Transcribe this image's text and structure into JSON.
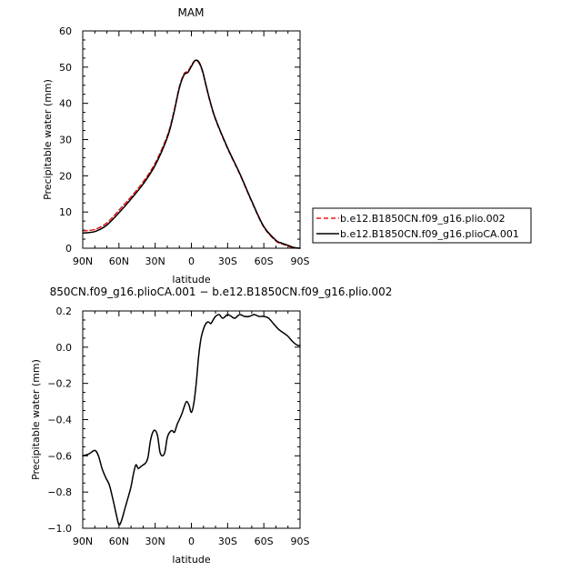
{
  "figure": {
    "top_title": "MAM",
    "bottom_title": "850CN.f09_g16.plioCA.001 − b.e12.B1850CN.f09_g16.plio.002"
  },
  "chart_data": [
    {
      "type": "line",
      "title": "MAM",
      "xlabel": "latitude",
      "ylabel": "Precipitable water (mm)",
      "x_tick_labels": [
        "90N",
        "60N",
        "30N",
        "0",
        "30S",
        "60S",
        "90S"
      ],
      "x_ticks": [
        90,
        60,
        30,
        0,
        -30,
        -60,
        -90
      ],
      "xlim": [
        90,
        -90
      ],
      "ylim": [
        0,
        60
      ],
      "y_ticks": [
        0,
        10,
        20,
        30,
        40,
        50,
        60
      ],
      "legend_position": "right",
      "series": [
        {
          "name": "b.e12.B1850CN.f09_g16.plio.002",
          "color": "#e31a1c",
          "dash": "dashed",
          "x": [
            90,
            80,
            70,
            60,
            50,
            40,
            30,
            20,
            15,
            10,
            6,
            3,
            0,
            -3,
            -6,
            -9,
            -12,
            -15,
            -20,
            -30,
            -40,
            -50,
            -60,
            -70,
            -75,
            -80,
            -85,
            -90
          ],
          "y": [
            4.8,
            5.2,
            7.0,
            10.5,
            14.2,
            18.3,
            23.5,
            31.0,
            37.0,
            44.5,
            48.2,
            48.8,
            50.5,
            51.8,
            51.3,
            49.0,
            45.0,
            41.0,
            35.5,
            27.5,
            20.5,
            12.8,
            5.8,
            2.0,
            1.2,
            0.6,
            0.1,
            0.0
          ]
        },
        {
          "name": "b.e12.B1850CN.f09_g16.plioCA.001",
          "color": "#000000",
          "dash": "solid",
          "x": [
            90,
            80,
            70,
            60,
            50,
            40,
            30,
            20,
            15,
            10,
            6,
            3,
            0,
            -3,
            -6,
            -9,
            -12,
            -15,
            -20,
            -30,
            -40,
            -50,
            -60,
            -70,
            -75,
            -80,
            -85,
            -90
          ],
          "y": [
            4.2,
            4.6,
            6.4,
            9.8,
            13.6,
            17.7,
            22.9,
            30.5,
            36.6,
            44.2,
            47.9,
            48.5,
            50.2,
            51.8,
            51.5,
            49.2,
            45.2,
            41.2,
            35.7,
            27.7,
            20.7,
            13.0,
            6.0,
            2.2,
            1.4,
            0.8,
            0.2,
            0.0
          ]
        }
      ]
    },
    {
      "type": "line",
      "title": "850CN.f09_g16.plioCA.001 − b.e12.B1850CN.f09_g16.plio.002",
      "xlabel": "latitude",
      "ylabel": "Precipitable water (mm)",
      "x_tick_labels": [
        "90N",
        "60N",
        "30N",
        "0",
        "30S",
        "60S",
        "90S"
      ],
      "x_ticks": [
        90,
        60,
        30,
        0,
        -30,
        -60,
        -90
      ],
      "xlim": [
        90,
        -90
      ],
      "ylim": [
        -1.0,
        0.2
      ],
      "y_ticks": [
        -1.0,
        -0.8,
        -0.6,
        -0.4,
        -0.2,
        0.0,
        0.2
      ],
      "y_tick_labels": [
        "−1.0",
        "−0.8",
        "−0.6",
        "−0.4",
        "−0.2",
        "0.0",
        "0.2"
      ],
      "series": [
        {
          "color": "#000000",
          "dash": "solid",
          "x": [
            90,
            85,
            80,
            77,
            74,
            71,
            68,
            65,
            62,
            60,
            58,
            55,
            52,
            50,
            48,
            46,
            44,
            42,
            40,
            38,
            36,
            34,
            32,
            30,
            28,
            26,
            24,
            22,
            20,
            18,
            16,
            14,
            12,
            10,
            8,
            6,
            4,
            2,
            0,
            -2,
            -4,
            -6,
            -8,
            -10,
            -12,
            -14,
            -16,
            -18,
            -20,
            -23,
            -26,
            -30,
            -33,
            -36,
            -40,
            -44,
            -48,
            -52,
            -56,
            -60,
            -64,
            -68,
            -72,
            -76,
            -80,
            -84,
            -88,
            -90
          ],
          "y": [
            -0.6,
            -0.59,
            -0.57,
            -0.6,
            -0.67,
            -0.72,
            -0.76,
            -0.84,
            -0.93,
            -0.98,
            -0.96,
            -0.89,
            -0.82,
            -0.77,
            -0.7,
            -0.65,
            -0.67,
            -0.66,
            -0.65,
            -0.64,
            -0.61,
            -0.52,
            -0.47,
            -0.46,
            -0.49,
            -0.58,
            -0.6,
            -0.58,
            -0.5,
            -0.47,
            -0.46,
            -0.47,
            -0.43,
            -0.4,
            -0.37,
            -0.33,
            -0.3,
            -0.32,
            -0.36,
            -0.31,
            -0.2,
            -0.05,
            0.05,
            0.1,
            0.13,
            0.14,
            0.13,
            0.15,
            0.17,
            0.18,
            0.16,
            0.18,
            0.17,
            0.16,
            0.18,
            0.17,
            0.17,
            0.18,
            0.17,
            0.17,
            0.16,
            0.13,
            0.1,
            0.08,
            0.06,
            0.03,
            0.01,
            0.01
          ]
        }
      ]
    }
  ]
}
